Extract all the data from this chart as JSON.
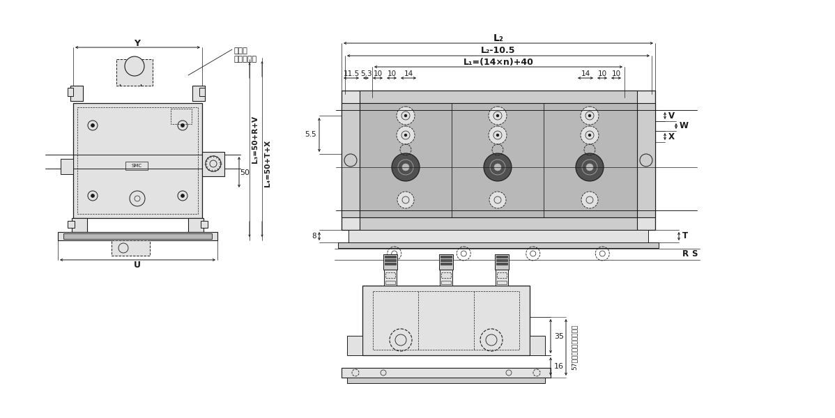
{
  "bg_color": "#ffffff",
  "lc": "#1a1a1a",
  "gc": "#cccccc",
  "lgc": "#e2e2e2",
  "mgc": "#b8b8b8",
  "dgc": "#505050",
  "labels": {
    "L2": "L₂",
    "L2_105": "L₂-10.5",
    "L1": "L₁=(14×n)+40",
    "L3": "L₃=50+R+V",
    "L4": "L₄=50+T+X",
    "n115": "11.5",
    "n53": "5.3",
    "n10a": "10",
    "n10b": "10",
    "n14a": "14",
    "n14b": "14",
    "n10c": "10",
    "n10d": "10",
    "n55": "5.5",
    "n8": "8",
    "n50": "50",
    "Y": "Y",
    "U": "U",
    "V": "V",
    "W": "W",
    "X": "X",
    "R": "R",
    "S": "S",
    "T": "T",
    "n35": "35",
    "n16": "16",
    "n57": "57（ハンドルロック時）",
    "gauge": "圧力計\n（付属品）"
  }
}
